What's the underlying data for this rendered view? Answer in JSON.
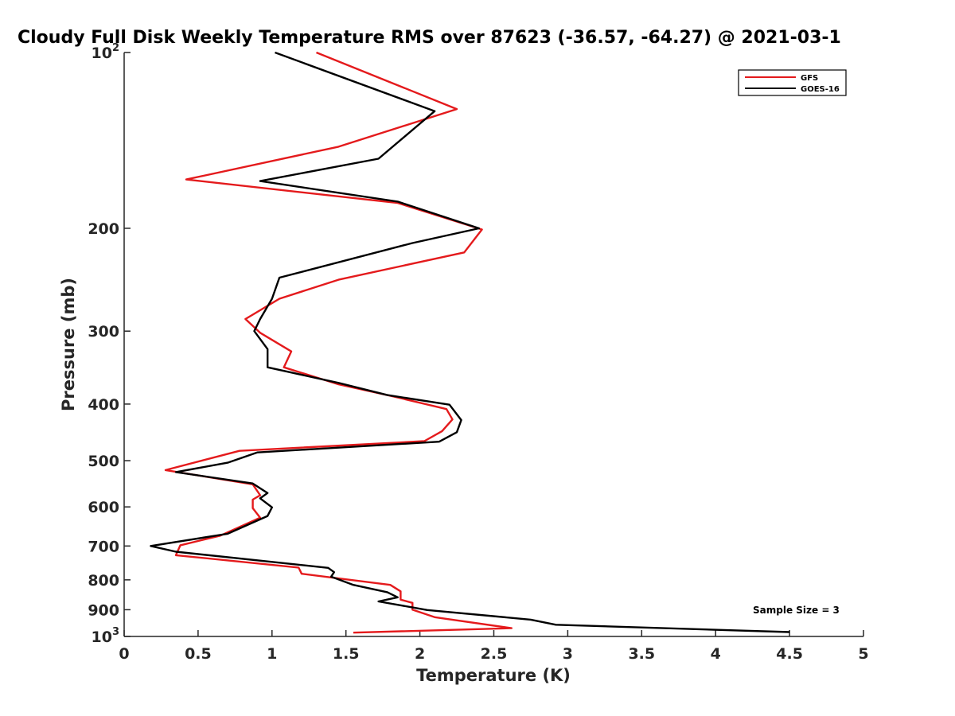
{
  "chart_data": {
    "type": "line",
    "title": "Cloudy Full Disk Weekly Temperature RMS over 87623 (-36.57, -64.27) @ 2021-03-1",
    "xlabel": "Temperature (K)",
    "ylabel": "Pressure (mb)",
    "xlim": [
      0,
      5
    ],
    "ylim": [
      100,
      1000
    ],
    "y_scale": "log",
    "y_reversed": true,
    "x_ticks": [
      "0",
      "0.5",
      "1",
      "1.5",
      "2",
      "2.5",
      "3",
      "3.5",
      "4",
      "4.5",
      "5"
    ],
    "y_ticks": [
      {
        "value": 100,
        "base": "10",
        "exp": "2"
      },
      {
        "value": 200,
        "label": "200"
      },
      {
        "value": 300,
        "label": "300"
      },
      {
        "value": 400,
        "label": "400"
      },
      {
        "value": 500,
        "label": "500"
      },
      {
        "value": 600,
        "label": "600"
      },
      {
        "value": 700,
        "label": "700"
      },
      {
        "value": 800,
        "label": "800"
      },
      {
        "value": 900,
        "label": "900"
      },
      {
        "value": 1000,
        "base": "10",
        "exp": "3"
      }
    ],
    "grid": false,
    "legend_position": "top-right",
    "annotation": "Sample Size = 3",
    "series": [
      {
        "name": "GFS",
        "color": "#e41a1c",
        "points": [
          [
            1.3,
            100
          ],
          [
            2.25,
            125
          ],
          [
            1.45,
            145
          ],
          [
            0.42,
            165
          ],
          [
            1.85,
            181
          ],
          [
            2.42,
            201
          ],
          [
            2.3,
            220
          ],
          [
            1.45,
            245
          ],
          [
            1.05,
            264
          ],
          [
            0.82,
            286
          ],
          [
            0.92,
            302
          ],
          [
            1.13,
            325
          ],
          [
            1.08,
            346
          ],
          [
            1.45,
            370
          ],
          [
            1.8,
            387
          ],
          [
            2.18,
            408
          ],
          [
            2.22,
            425
          ],
          [
            2.15,
            445
          ],
          [
            2.03,
            463
          ],
          [
            0.78,
            481
          ],
          [
            0.28,
            519
          ],
          [
            0.87,
            549
          ],
          [
            0.92,
            573
          ],
          [
            0.87,
            583
          ],
          [
            0.87,
            603
          ],
          [
            0.92,
            626
          ],
          [
            0.65,
            672
          ],
          [
            0.38,
            698
          ],
          [
            0.35,
            726
          ],
          [
            1.18,
            762
          ],
          [
            1.2,
            781
          ],
          [
            1.8,
            816
          ],
          [
            1.87,
            837
          ],
          [
            1.87,
            865
          ],
          [
            1.95,
            876
          ],
          [
            1.95,
            900
          ],
          [
            2.1,
            927
          ],
          [
            2.62,
            968
          ],
          [
            1.55,
            985
          ]
        ]
      },
      {
        "name": "GOES-16",
        "color": "#000000",
        "points": [
          [
            1.02,
            100
          ],
          [
            2.1,
            126
          ],
          [
            1.72,
            152
          ],
          [
            0.92,
            166
          ],
          [
            1.85,
            180
          ],
          [
            2.4,
            200
          ],
          [
            1.95,
            212
          ],
          [
            1.05,
            243
          ],
          [
            1.0,
            264
          ],
          [
            0.92,
            286
          ],
          [
            0.88,
            300
          ],
          [
            0.97,
            322
          ],
          [
            0.97,
            346
          ],
          [
            1.45,
            368
          ],
          [
            1.78,
            386
          ],
          [
            2.2,
            401
          ],
          [
            2.28,
            426
          ],
          [
            2.25,
            447
          ],
          [
            2.13,
            464
          ],
          [
            0.9,
            484
          ],
          [
            0.7,
            504
          ],
          [
            0.35,
            523
          ],
          [
            0.87,
            547
          ],
          [
            0.97,
            568
          ],
          [
            0.92,
            580
          ],
          [
            1.0,
            601
          ],
          [
            0.97,
            622
          ],
          [
            0.7,
            667
          ],
          [
            0.18,
            700
          ],
          [
            0.35,
            716
          ],
          [
            1.38,
            763
          ],
          [
            1.42,
            776
          ],
          [
            1.4,
            790
          ],
          [
            1.55,
            816
          ],
          [
            1.78,
            840
          ],
          [
            1.85,
            857
          ],
          [
            1.72,
            871
          ],
          [
            2.05,
            901
          ],
          [
            2.75,
            936
          ],
          [
            2.92,
            955
          ],
          [
            4.5,
            983
          ]
        ]
      }
    ]
  }
}
